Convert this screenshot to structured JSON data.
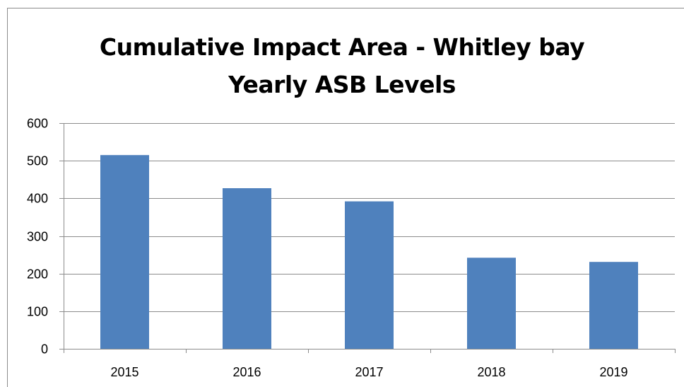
{
  "chart_data": {
    "type": "bar",
    "title": "Cumulative Impact Area - Whitley bay Yearly ASB Levels",
    "title_lines": [
      "Cumulative Impact Area - Whitley bay",
      "Yearly ASB Levels"
    ],
    "xlabel": "",
    "ylabel": "",
    "categories": [
      "2015",
      "2016",
      "2017",
      "2018",
      "2019"
    ],
    "series": [
      {
        "values": [
          515,
          427,
          392,
          242,
          231
        ],
        "color": "#4f81bd"
      }
    ],
    "ylim": [
      0,
      600
    ],
    "yticks": [
      0,
      100,
      200,
      300,
      400,
      500,
      600
    ],
    "grid": true,
    "legend": "none"
  }
}
